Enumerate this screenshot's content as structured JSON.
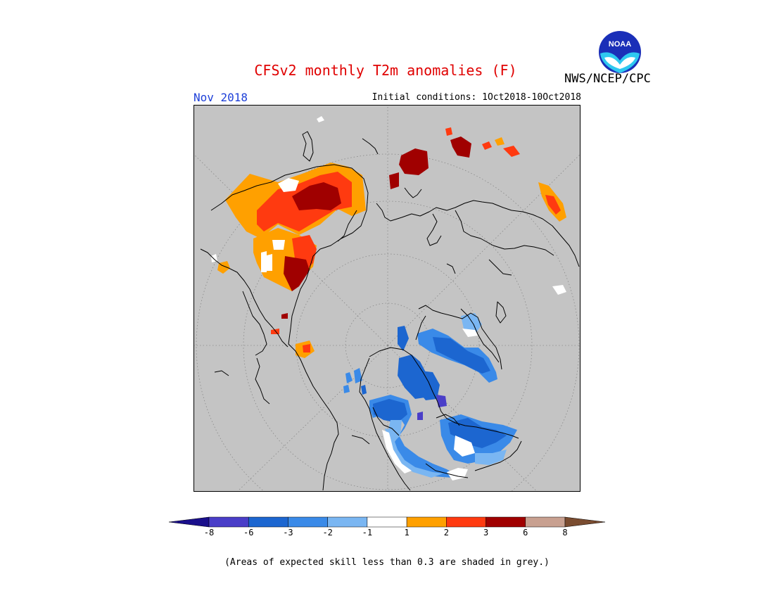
{
  "title": "CFSv2 monthly T2m anomalies (F)",
  "agency": "NWS/NCEP/CPC",
  "logo_text": "NOAA",
  "valid_month": "Nov 2018",
  "initial_conditions": "Initial conditions: 1Oct2018-10Oct2018",
  "footnote": "(Areas of expected skill less than 0.3 are shaded in grey.)",
  "colors": {
    "skill_grey": "#c4c4c4",
    "title_red": "#e00000",
    "month_blue": "#1d3fd8"
  },
  "legend": {
    "tick_labels": [
      "-8",
      "-6",
      "-3",
      "-2",
      "-1",
      "1",
      "2",
      "3",
      "6",
      "8"
    ],
    "bins": [
      {
        "color": "#1a0f8c"
      },
      {
        "color": "#4a3ec8"
      },
      {
        "color": "#1c66d0"
      },
      {
        "color": "#3a8ae8"
      },
      {
        "color": "#7ab6f2"
      },
      {
        "color": "#ffffff"
      },
      {
        "color": "#ffa000"
      },
      {
        "color": "#ff3a10"
      },
      {
        "color": "#a00000"
      },
      {
        "color": "#c8a090"
      },
      {
        "color": "#7a4c30"
      }
    ]
  }
}
